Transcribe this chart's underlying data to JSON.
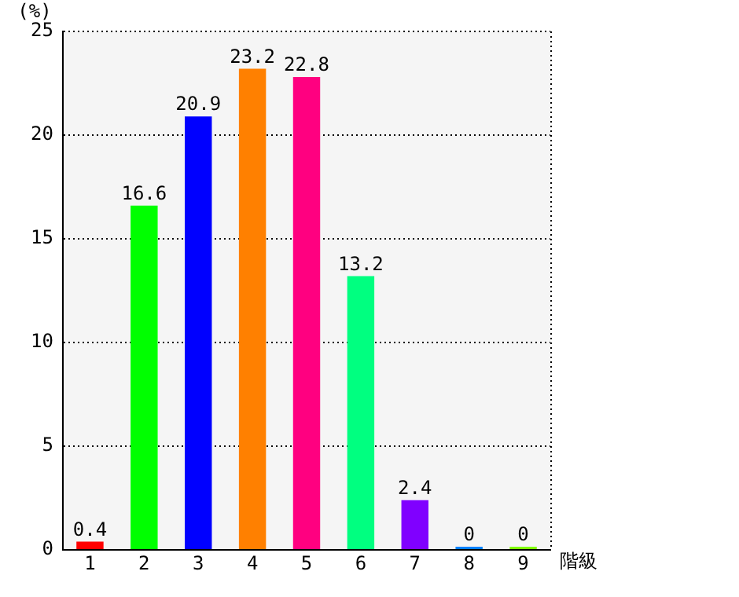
{
  "chart_data": {
    "type": "bar",
    "ylabel": "(%)",
    "xlabel": "階級",
    "categories": [
      "1",
      "2",
      "3",
      "4",
      "5",
      "6",
      "7",
      "8",
      "9"
    ],
    "values": [
      0.4,
      16.6,
      20.9,
      23.2,
      22.8,
      13.2,
      2.4,
      0,
      0
    ],
    "colors": [
      "#ff0000",
      "#00ff00",
      "#0000ff",
      "#ff8000",
      "#ff0080",
      "#00ff80",
      "#8000ff",
      "#0080ff",
      "#80ff00"
    ],
    "ylim": [
      0,
      25
    ],
    "yticks": [
      0,
      5,
      10,
      15,
      20,
      25
    ],
    "grid": "y",
    "data_labels": true,
    "legend": false
  }
}
